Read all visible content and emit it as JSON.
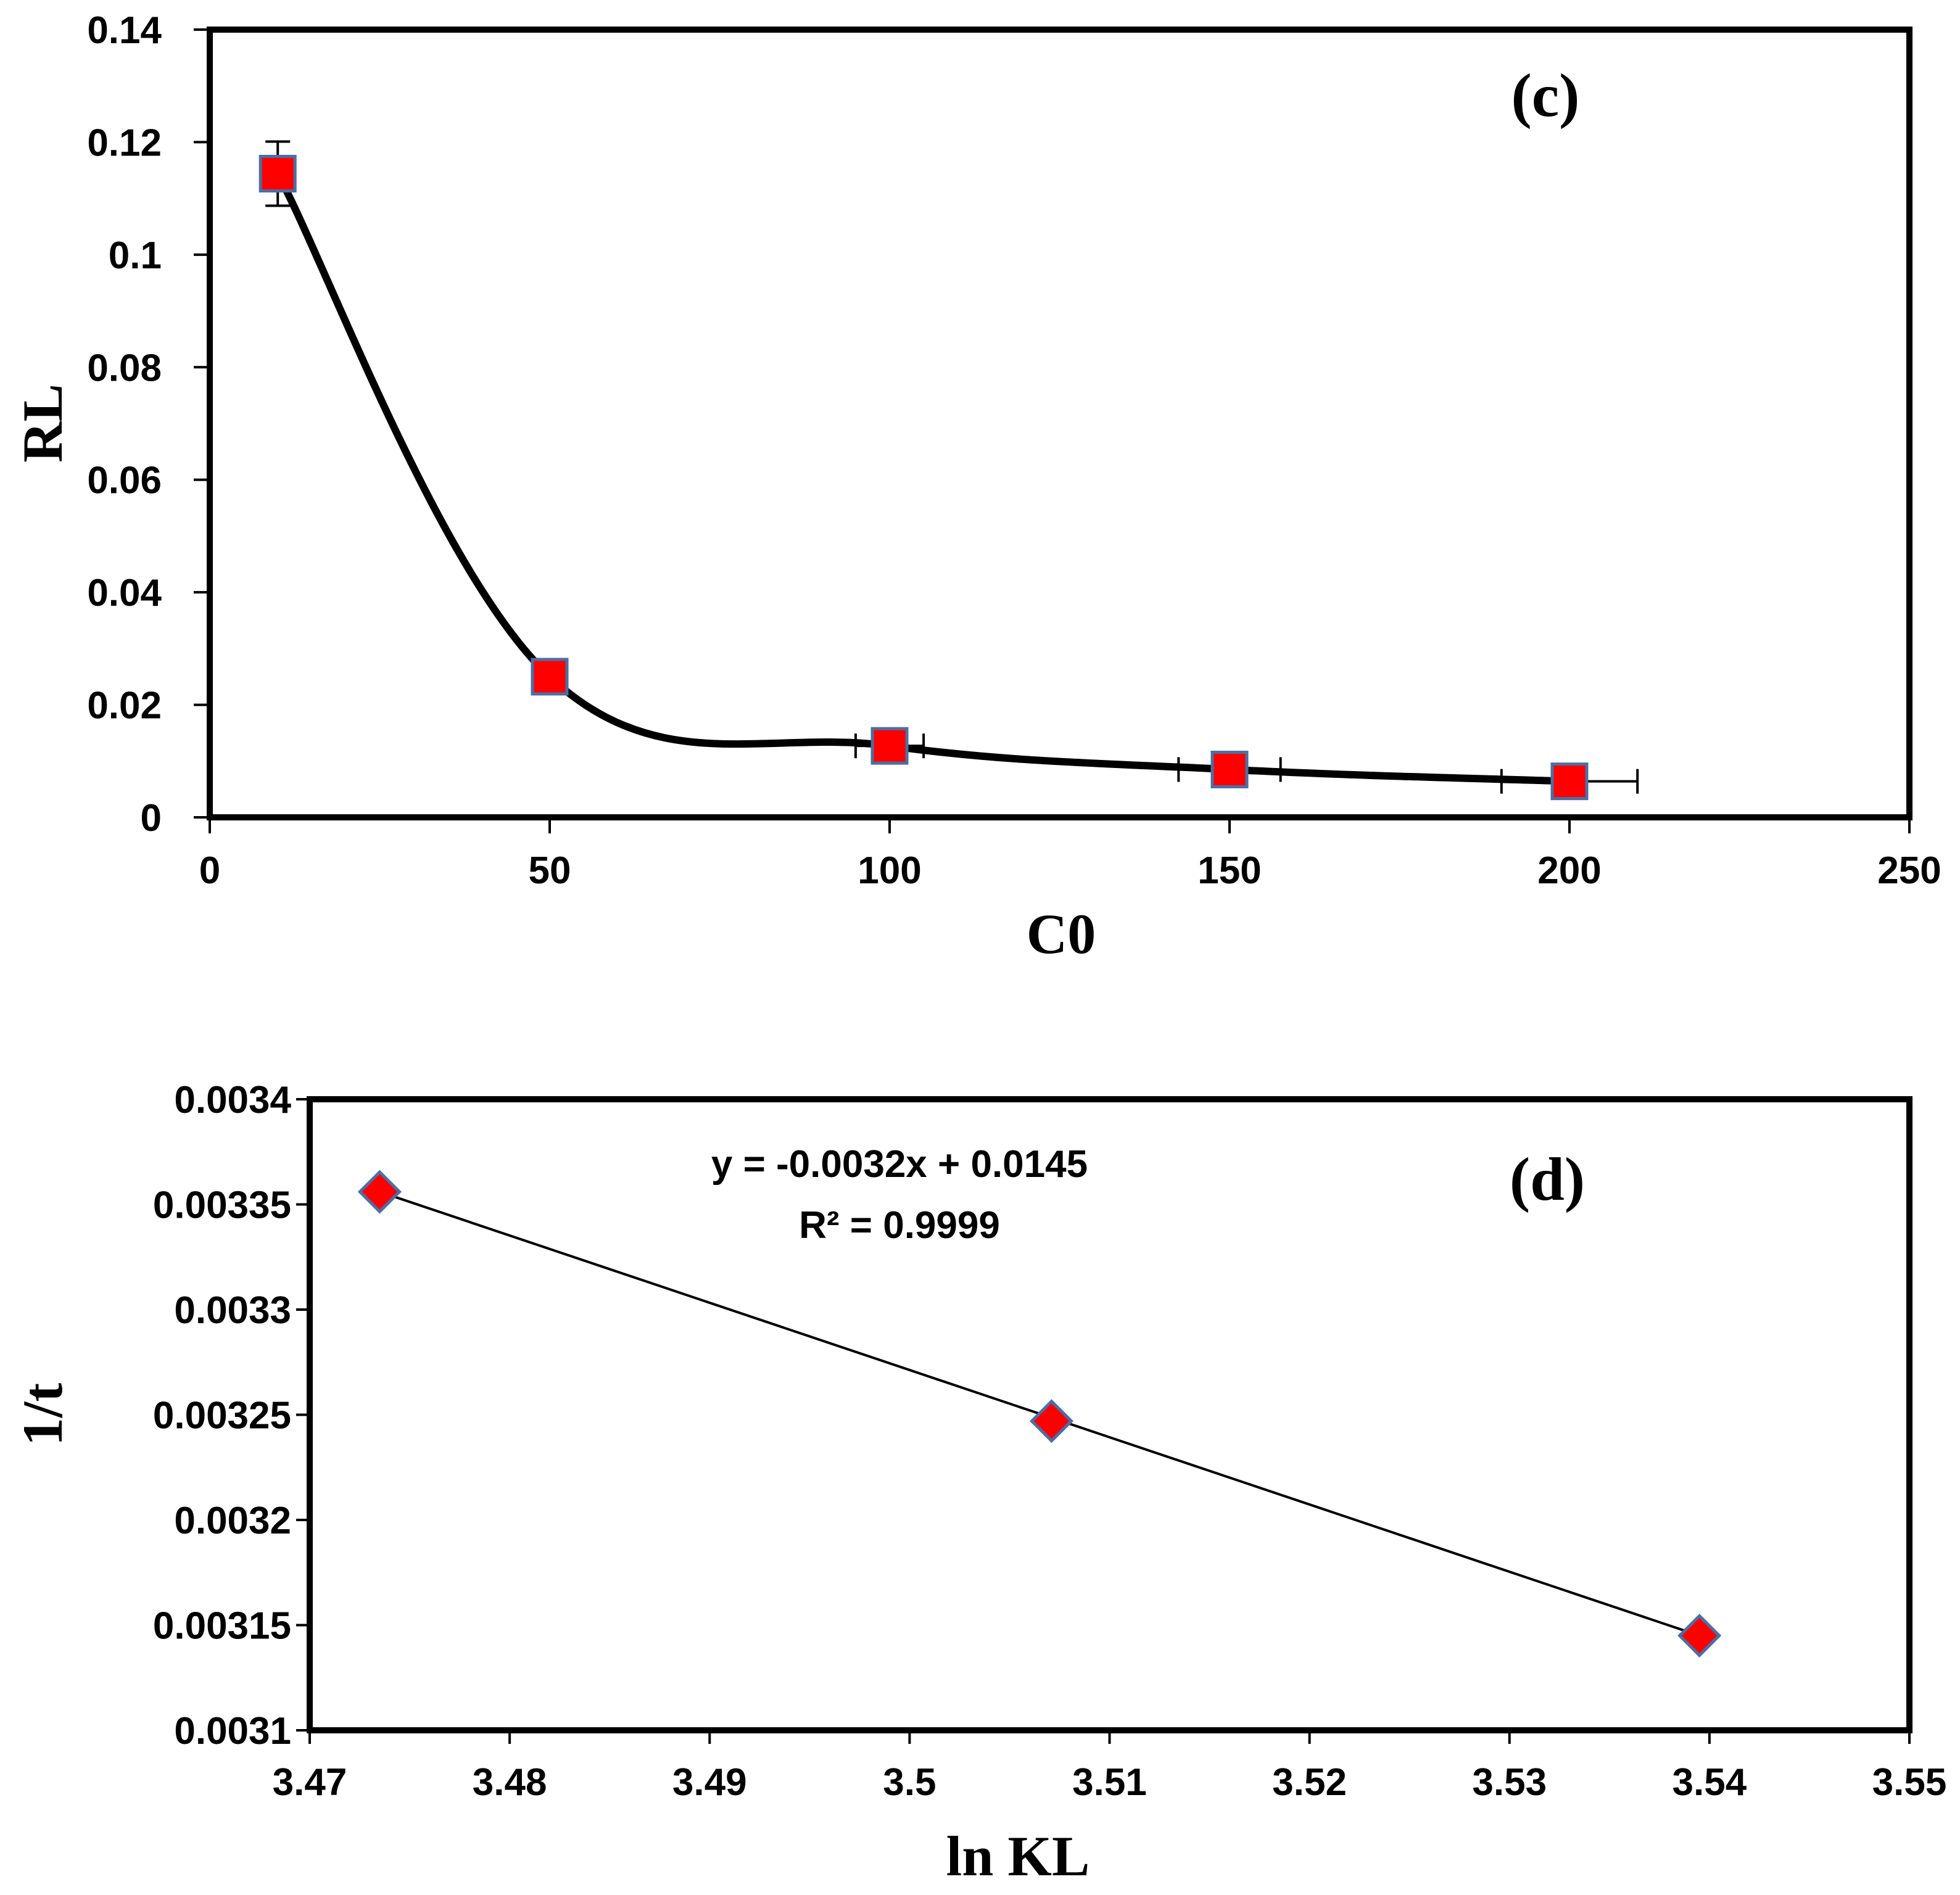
{
  "chart_data": [
    {
      "id": "c",
      "type": "scatter",
      "panel_label": "(c)",
      "title": "",
      "xlabel": "C0",
      "ylabel": "RL",
      "xlim": [
        0,
        250
      ],
      "ylim": [
        0,
        0.14
      ],
      "x_ticks": [
        0,
        50,
        100,
        150,
        200,
        250
      ],
      "x_tick_labels": [
        "0",
        "50",
        "100",
        "150",
        "200",
        "250"
      ],
      "y_ticks": [
        0,
        0.02,
        0.04,
        0.06,
        0.08,
        0.1,
        0.12,
        0.14
      ],
      "y_tick_labels": [
        "0",
        "0.02",
        "0.04",
        "0.06",
        "0.08",
        "0.1",
        "0.12",
        "0.14"
      ],
      "grid": false,
      "line": "smooth",
      "series": [
        {
          "name": "RL",
          "marker": "square",
          "marker_color": "#ff0000",
          "marker_edge": "#4a6fa5",
          "x": [
            10,
            50,
            100,
            150,
            200
          ],
          "y": [
            0.1144,
            0.025,
            0.0127,
            0.0085,
            0.0064
          ],
          "x_err": [
            0,
            0,
            5,
            7.5,
            10
          ],
          "y_err": [
            0.0057,
            0,
            0,
            0,
            0
          ]
        }
      ]
    },
    {
      "id": "d",
      "type": "scatter",
      "panel_label": "(d)",
      "title": "",
      "xlabel": "ln KL",
      "ylabel": "1/t",
      "xlim": [
        3.47,
        3.55
      ],
      "ylim": [
        0.0031,
        0.0034
      ],
      "x_ticks": [
        3.47,
        3.48,
        3.49,
        3.5,
        3.51,
        3.52,
        3.53,
        3.54,
        3.55
      ],
      "x_tick_labels": [
        "3.47",
        "3.48",
        "3.49",
        "3.5",
        "3.51",
        "3.52",
        "3.53",
        "3.54",
        "3.55"
      ],
      "y_ticks": [
        0.0031,
        0.00315,
        0.0032,
        0.00325,
        0.0033,
        0.00335,
        0.0034
      ],
      "y_tick_labels": [
        "0.0031",
        "0.00315",
        "0.0032",
        "0.00325",
        "0.0033",
        "0.00335",
        "0.0034"
      ],
      "grid": false,
      "line": "linear-trendline",
      "equation": "y = -0.0032x + 0.0145",
      "r_squared": "R² = 0.9999",
      "series": [
        {
          "name": "1/t",
          "marker": "diamond",
          "marker_color": "#ff0000",
          "marker_edge": "#4a6fa5",
          "x": [
            3.4735,
            3.5071,
            3.5395
          ],
          "y": [
            0.003356,
            0.003247,
            0.003145
          ]
        }
      ],
      "trendline": {
        "x": [
          3.4735,
          3.5395
        ],
        "y": [
          0.003356,
          0.003145
        ]
      }
    }
  ]
}
